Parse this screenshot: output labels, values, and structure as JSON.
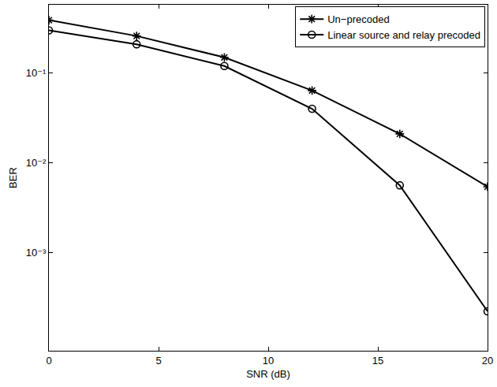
{
  "chart_data": {
    "type": "line",
    "x_label": "SNR (dB)",
    "y_label": "BER",
    "log": "y",
    "grid": false,
    "legend": "top right",
    "xlim": [
      0,
      20
    ],
    "xticks": [
      0,
      5,
      10,
      15,
      20
    ],
    "ylim": [
      8e-05,
      0.58
    ],
    "yticks": [
      {
        "value": 0.001,
        "label": "10⁻³"
      },
      {
        "value": 0.01,
        "label": "10⁻²"
      },
      {
        "value": 0.1,
        "label": "10⁻¹"
      }
    ],
    "x": [
      0,
      4,
      8,
      12,
      16,
      20
    ],
    "series": [
      {
        "name": "Un−precoded",
        "color": "#000000",
        "marker": "asterisk",
        "line_style": "solid",
        "values": [
          0.39,
          0.26,
          0.15,
          0.064,
          0.021,
          0.0054
        ]
      },
      {
        "name": "Linear source and relay precoded",
        "color": "#000000",
        "marker": "circle-open",
        "line_style": "solid",
        "values": [
          0.3,
          0.21,
          0.12,
          0.04,
          0.0056,
          0.00022
        ]
      }
    ]
  }
}
